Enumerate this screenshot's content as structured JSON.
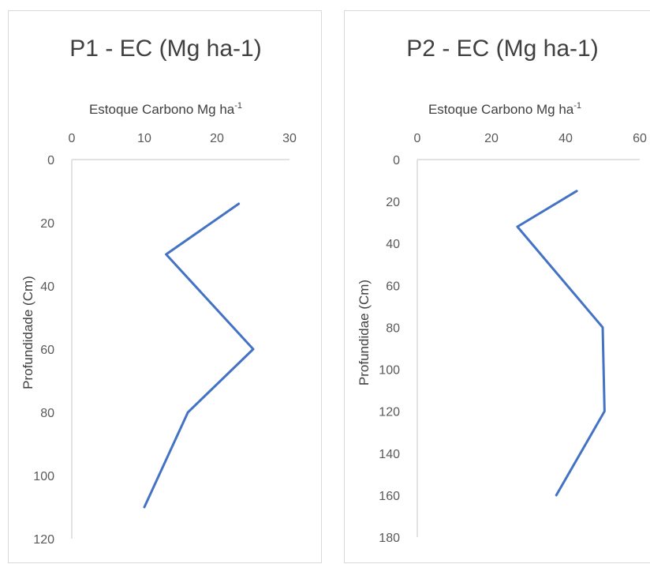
{
  "chart_data": [
    {
      "type": "line",
      "title": "P1 - EC (Mg ha-1)",
      "xlabel": "Estoque Carbono Mg ha",
      "xlabel_sup": "-1",
      "ylabel": "Profundidade (Cm)",
      "xlim": [
        0,
        30
      ],
      "ylim": [
        0,
        120
      ],
      "x_ticks": [
        0,
        10,
        20,
        30
      ],
      "y_ticks": [
        0,
        20,
        40,
        60,
        80,
        100,
        120
      ],
      "y_inverted": true,
      "x_axis_position": "top",
      "grid": false,
      "color": "#4472c4",
      "series": [
        {
          "x": [
            23,
            13,
            25,
            16,
            10
          ],
          "y": [
            14,
            30,
            60,
            80,
            110
          ]
        }
      ]
    },
    {
      "type": "line",
      "title": "P2 - EC (Mg ha-1)",
      "xlabel": "Estoque Carbono Mg ha",
      "xlabel_sup": "-1",
      "ylabel": "Profundidae (Cm)",
      "xlim": [
        0,
        60
      ],
      "ylim": [
        0,
        180
      ],
      "x_ticks": [
        0,
        20,
        40,
        60
      ],
      "y_ticks": [
        0,
        20,
        40,
        60,
        80,
        100,
        120,
        140,
        160,
        180
      ],
      "y_inverted": true,
      "x_axis_position": "top",
      "grid": false,
      "color": "#4472c4",
      "series": [
        {
          "x": [
            43,
            27,
            50,
            50.5,
            37.5
          ],
          "y": [
            15,
            32,
            80,
            120,
            160
          ]
        }
      ]
    }
  ]
}
